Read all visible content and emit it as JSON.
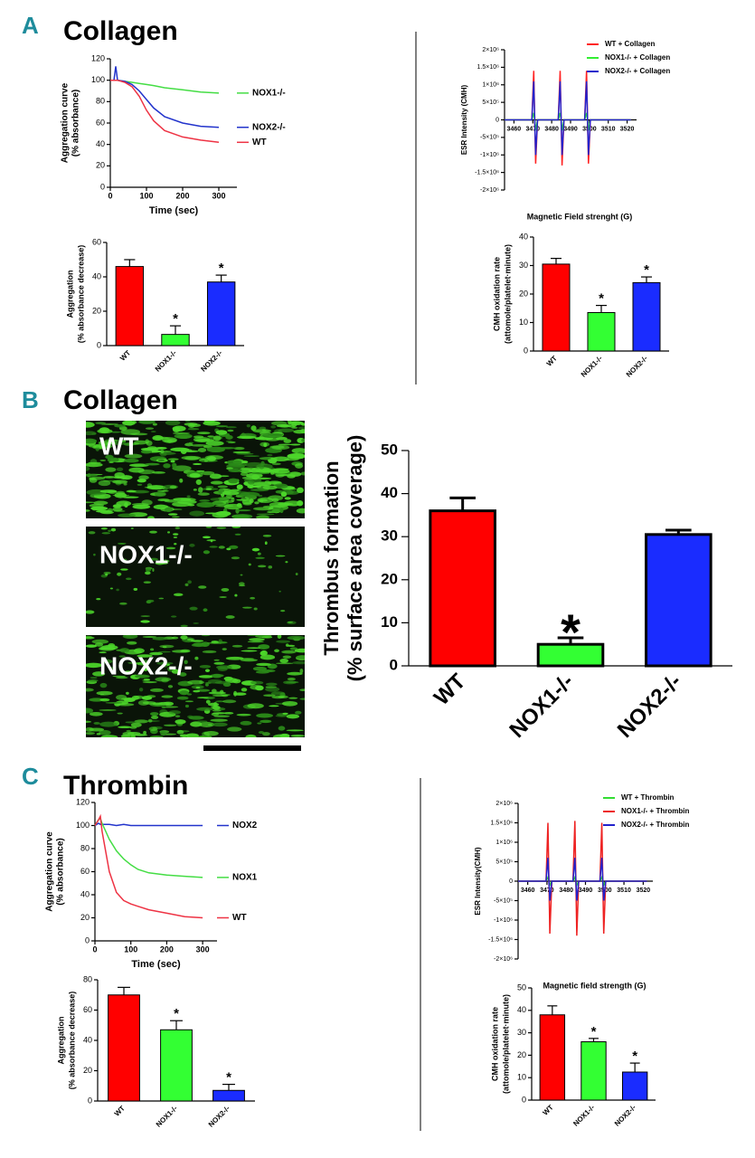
{
  "panels": [
    {
      "letter": "A",
      "title": "Collagen"
    },
    {
      "letter": "B",
      "title": "Collagen"
    },
    {
      "letter": "C",
      "title": "Thrombin"
    }
  ],
  "micrographs": {
    "labels": [
      "WT",
      "NOX1-/-",
      "NOX2-/-"
    ]
  },
  "chart_data": [
    {
      "type": "line",
      "legend": "end",
      "xlabel": "Time (sec)",
      "ylabel": [
        "Aggregation curve",
        "(% absorbance)"
      ],
      "x": [
        0,
        10,
        15,
        20,
        40,
        60,
        80,
        100,
        120,
        150,
        200,
        250,
        300
      ],
      "xlim": [
        0,
        350
      ],
      "xticks": [
        0,
        100,
        200,
        300
      ],
      "ylim": [
        0,
        120
      ],
      "yticks": [
        0,
        20,
        40,
        60,
        80,
        100,
        120
      ],
      "series": [
        {
          "name": "NOX1-/-",
          "color": "#44dd44",
          "values": [
            100,
            100,
            100,
            100,
            99,
            98,
            97,
            96,
            95,
            93,
            91,
            89,
            88
          ]
        },
        {
          "name": "NOX2-/-",
          "color": "#2233cc",
          "values": [
            100,
            100,
            113,
            100,
            99,
            96,
            90,
            82,
            74,
            66,
            60,
            57,
            56
          ]
        },
        {
          "name": "WT",
          "color": "#ee3344",
          "values": [
            100,
            100,
            100,
            100,
            98,
            94,
            85,
            72,
            62,
            53,
            47,
            44,
            42
          ]
        }
      ]
    },
    {
      "type": "line",
      "legend": "upper right",
      "xlabel": "Magnetic Field strenght (G)",
      "ylabel": [
        "ESR Intensity (CMH)"
      ],
      "x": [
        3455,
        3469.5,
        3470.5,
        3471,
        3471.5,
        3472.5,
        3483.5,
        3484.5,
        3485,
        3485.5,
        3486.5,
        3497.5,
        3498.5,
        3499,
        3499.5,
        3500.5,
        3522
      ],
      "xlim": [
        3455,
        3525
      ],
      "xticks": [
        3460,
        3470,
        3480,
        3490,
        3500,
        3510,
        3520
      ],
      "ylim": [
        -2000000,
        2000000
      ],
      "yticks": [
        {
          "value": 2000000,
          "label": "2×10⁶"
        },
        {
          "value": 1500000,
          "label": "1.5×10⁶"
        },
        {
          "value": 1000000,
          "label": "1×10⁶"
        },
        {
          "value": 500000,
          "label": "5×10⁵"
        },
        0,
        {
          "value": -500000,
          "label": "-5×10⁵"
        },
        {
          "value": -1000000,
          "label": "-1×10⁶"
        },
        {
          "value": -1500000,
          "label": "-1.5×10⁶"
        },
        {
          "value": -2000000,
          "label": "-2×10⁶"
        }
      ],
      "series": [
        {
          "name": "WT + Collagen",
          "color": "#ff2222",
          "values": [
            0,
            0,
            1400000,
            0,
            -1250000,
            0,
            0,
            1400000,
            0,
            -1300000,
            0,
            0,
            1400000,
            0,
            -1250000,
            0,
            0
          ]
        },
        {
          "name": "NOX1-/- + Collagen",
          "color": "#33ee33",
          "values": [
            0,
            0,
            200000,
            0,
            -300000,
            0,
            0,
            200000,
            0,
            -300000,
            0,
            0,
            200000,
            0,
            -300000,
            0,
            0
          ]
        },
        {
          "name": "NOX2-/- + Collagen",
          "color": "#2222cc",
          "values": [
            0,
            0,
            1100000,
            0,
            -1000000,
            0,
            0,
            1100000,
            0,
            -1000000,
            0,
            0,
            1100000,
            0,
            -1000000,
            0,
            0
          ]
        }
      ]
    },
    {
      "type": "bar",
      "ylabel": [
        "Aggregation",
        "(% absorbance decrease)"
      ],
      "categories": [
        "WT",
        "NOX1-/-",
        "NOX2-/-"
      ],
      "values": [
        46,
        6.5,
        37
      ],
      "errors": [
        4,
        5,
        4
      ],
      "colors": [
        "#ff0000",
        "#33ff33",
        "#1a2cff"
      ],
      "ylim": [
        0,
        60
      ],
      "yticks": [
        0,
        20,
        40,
        60
      ],
      "annotations": [
        {
          "text": "*",
          "category": "NOX1-/-"
        },
        {
          "text": "*",
          "category": "NOX2-/-"
        }
      ]
    },
    {
      "type": "bar",
      "ylabel": [
        "CMH oxidation rate",
        "(attomole/platelet·minute)"
      ],
      "categories": [
        "WT",
        "NOX1-/-",
        "NOX2-/-"
      ],
      "values": [
        30.5,
        13.5,
        24
      ],
      "errors": [
        2,
        2.5,
        2
      ],
      "colors": [
        "#ff0000",
        "#33ff33",
        "#1a2cff"
      ],
      "ylim": [
        0,
        40
      ],
      "yticks": [
        0,
        10,
        20,
        30,
        40
      ],
      "annotations": [
        {
          "text": "*",
          "category": "NOX1-/-"
        },
        {
          "text": "*",
          "category": "NOX2-/-"
        }
      ]
    },
    {
      "type": "bar",
      "ylabel": [
        "Thrombus formation",
        "(% surface area coverage)"
      ],
      "categories": [
        "WT",
        "NOX1-/-",
        "NOX2-/-"
      ],
      "values": [
        36,
        5,
        30.5
      ],
      "errors": [
        3,
        1.5,
        1
      ],
      "colors": [
        "#ff0000",
        "#33ff33",
        "#1a2cff"
      ],
      "ylim": [
        0,
        50
      ],
      "yticks": [
        0,
        10,
        20,
        30,
        40,
        50
      ],
      "annotations": [
        {
          "text": "*",
          "category": "NOX1-/-"
        }
      ]
    },
    {
      "type": "line",
      "legend": "end",
      "xlabel": "Time (sec)",
      "ylabel": [
        "Aggregation curve",
        "(% absorbance)"
      ],
      "x": [
        0,
        10,
        15,
        20,
        40,
        60,
        80,
        100,
        120,
        150,
        200,
        250,
        300
      ],
      "xlim": [
        0,
        340
      ],
      "xticks": [
        0,
        100,
        200,
        300
      ],
      "ylim": [
        0,
        120
      ],
      "yticks": [
        0,
        20,
        40,
        60,
        80,
        100,
        120
      ],
      "series": [
        {
          "name": "NOX2",
          "color": "#2233cc",
          "values": [
            100,
            102,
            101,
            101,
            101,
            100,
            101,
            100,
            100,
            100,
            100,
            100,
            100
          ]
        },
        {
          "name": "NOX1",
          "color": "#44dd44",
          "values": [
            100,
            105,
            106,
            102,
            88,
            78,
            71,
            66,
            62,
            59,
            57,
            56,
            55
          ]
        },
        {
          "name": "WT",
          "color": "#ee3344",
          "values": [
            100,
            105,
            108,
            95,
            60,
            42,
            35,
            32,
            30,
            27,
            24,
            21,
            20
          ]
        }
      ]
    },
    {
      "type": "line",
      "legend": "upper right",
      "xlabel": "Magnetic field strength (G)",
      "ylabel": [
        "ESR Intensity(CMH)"
      ],
      "x": [
        3455,
        3469.5,
        3470.5,
        3471,
        3471.5,
        3472.5,
        3483.5,
        3484.5,
        3485,
        3485.5,
        3486.5,
        3497.5,
        3498.5,
        3499,
        3499.5,
        3500.5,
        3522
      ],
      "xlim": [
        3455,
        3525
      ],
      "xticks": [
        3460,
        3470,
        3480,
        3490,
        3500,
        3510,
        3520
      ],
      "ylim": [
        -2000000,
        2000000
      ],
      "yticks": [
        {
          "value": 2000000,
          "label": "2×10⁶"
        },
        {
          "value": 1500000,
          "label": "1.5×10⁶"
        },
        {
          "value": 1000000,
          "label": "1×10⁶"
        },
        {
          "value": 500000,
          "label": "5×10⁵"
        },
        0,
        {
          "value": -500000,
          "label": "-5×10⁵"
        },
        {
          "value": -1000000,
          "label": "-1×10⁶"
        },
        {
          "value": -1500000,
          "label": "-1.5×10⁶"
        },
        {
          "value": -2000000,
          "label": "-2×10⁶"
        }
      ],
      "series": [
        {
          "name": "WT + Thrombin",
          "color": "#33dd33",
          "values": [
            0,
            0,
            100000,
            0,
            -100000,
            0,
            0,
            100000,
            0,
            -100000,
            0,
            0,
            100000,
            0,
            -100000,
            0,
            0
          ]
        },
        {
          "name": "NOX1-/- + Thrombin",
          "color": "#ee2222",
          "values": [
            0,
            0,
            1500000,
            0,
            -1350000,
            0,
            0,
            1550000,
            0,
            -1400000,
            0,
            0,
            1500000,
            0,
            -1350000,
            0,
            0
          ]
        },
        {
          "name": "NOX2-/- + Thrombin",
          "color": "#2222cc",
          "values": [
            0,
            0,
            600000,
            0,
            -500000,
            0,
            0,
            600000,
            0,
            -500000,
            0,
            0,
            600000,
            0,
            -500000,
            0,
            0
          ]
        }
      ]
    },
    {
      "type": "bar",
      "ylabel": [
        "Aggregation",
        "(% absorbance decrease)"
      ],
      "categories": [
        "WT",
        "NOX1-/-",
        "NOX2-/-"
      ],
      "values": [
        70,
        47,
        7
      ],
      "errors": [
        5,
        6,
        4
      ],
      "colors": [
        "#ff0000",
        "#33ff33",
        "#1a2cff"
      ],
      "ylim": [
        0,
        80
      ],
      "yticks": [
        0,
        20,
        40,
        60,
        80
      ],
      "annotations": [
        {
          "text": "*",
          "category": "NOX1-/-"
        },
        {
          "text": "*",
          "category": "NOX2-/-"
        }
      ]
    },
    {
      "type": "bar",
      "ylabel": [
        "CMH oxidation rate",
        "(attomole/platelet·minute)"
      ],
      "categories": [
        "WT",
        "NOX1-/-",
        "NOX2-/-"
      ],
      "values": [
        38,
        26,
        12.5
      ],
      "errors": [
        4,
        1.5,
        4
      ],
      "colors": [
        "#ff0000",
        "#33ff33",
        "#1a2cff"
      ],
      "ylim": [
        0,
        50
      ],
      "yticks": [
        0,
        10,
        20,
        30,
        40,
        50
      ],
      "annotations": [
        {
          "text": "*",
          "category": "NOX1-/-"
        },
        {
          "text": "*",
          "category": "NOX2-/-"
        }
      ]
    }
  ]
}
